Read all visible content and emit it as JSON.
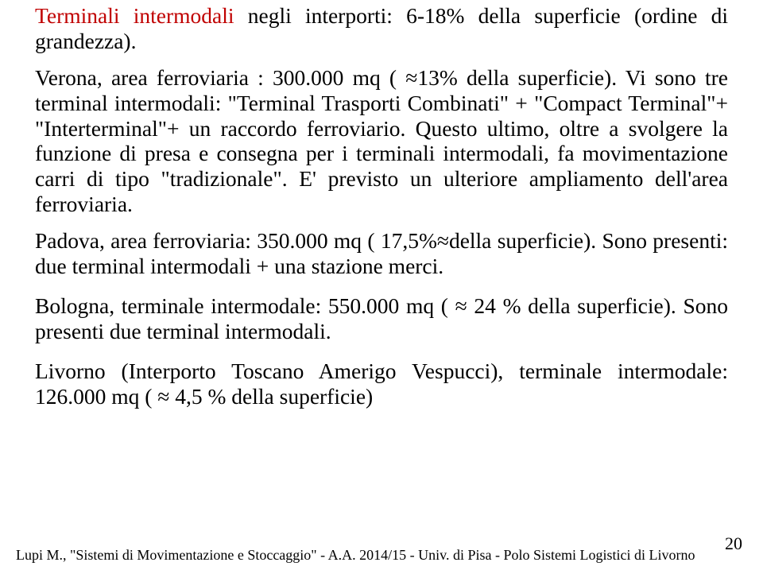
{
  "colors": {
    "text": "#000000",
    "accent_red": "#c00000",
    "background": "#ffffff"
  },
  "typography": {
    "body_font": "Times New Roman",
    "body_size_pt": 21,
    "footer_size_pt": 14,
    "pagenum_size_pt": 16
  },
  "p1": {
    "lead": "Terminali intermodali",
    "rest": " negli interporti: 6-18% della superficie (ordine di grandezza)."
  },
  "p2": "Verona, area ferroviaria : 300.000 mq  ( ≈13% della superficie). Vi sono tre terminal intermodali: \"Terminal Trasporti Combinati\" + \"Compact Terminal\"+ \"Interterminal\"+ un raccordo ferroviario. Questo ultimo, oltre a svolgere  la funzione di presa e consegna per i terminali intermodali, fa movimentazione carri di tipo \"tradizionale\". E' previsto un ulteriore ampliamento dell'area ferroviaria.",
  "p3": "Padova, area ferroviaria: 350.000 mq  (     17,5%≈della superficie). Sono presenti: due terminal  intermodali + una stazione merci.",
  "p4": "Bologna, terminale intermodale: 550.000 mq (  ≈ 24 % della superficie). Sono presenti due terminal intermodali.",
  "p5": "Livorno (Interporto Toscano Amerigo Vespucci), terminale intermodale: 126.000 mq ( ≈ 4,5 % della superficie)",
  "footer": {
    "citation": "Lupi M., \"Sistemi di Movimentazione e Stoccaggio\" - A.A. 2014/15 - Univ. di Pisa - Polo Sistemi Logistici di Livorno",
    "page": "20"
  }
}
